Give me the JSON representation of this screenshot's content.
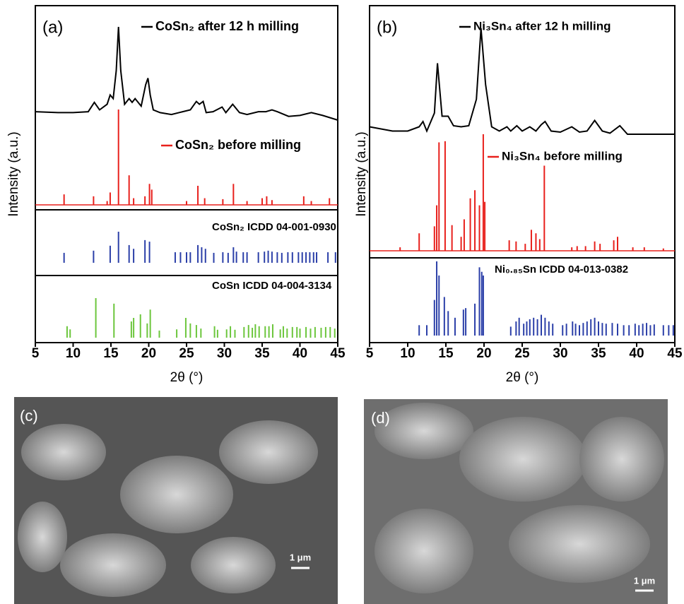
{
  "chart_data": [
    {
      "type": "xrd",
      "panel_label": "(a)",
      "ylabel": "Intensity (a.u.)",
      "xlabel": "2θ (°)",
      "xlim": [
        5,
        45
      ],
      "xticks": [
        5,
        10,
        15,
        20,
        25,
        30,
        35,
        40,
        45
      ],
      "ylim": [
        0,
        100
      ],
      "series": [
        {
          "name": "CoSn₂ after 12 h milling",
          "style": "line",
          "color": "#000000",
          "x": [
            5,
            8,
            10,
            12,
            12.8,
            13.5,
            14.5,
            14.9,
            15.3,
            15.7,
            16.0,
            16.3,
            16.8,
            17.4,
            17.8,
            18.2,
            19,
            19.6,
            19.9,
            20.2,
            20.6,
            21.5,
            23,
            24.5,
            25.5,
            26.3,
            26.7,
            27.2,
            27.6,
            28.5,
            29.7,
            30.2,
            31.1,
            32,
            33,
            34.5,
            35.5,
            36.3,
            37,
            38.5,
            40,
            41.5,
            43,
            45
          ],
          "values": [
            9,
            8,
            8,
            9,
            19,
            11,
            17,
            27,
            23,
            53,
            100,
            53,
            17,
            23,
            19,
            23,
            15,
            38,
            45,
            27,
            11,
            8,
            6,
            9,
            11,
            20,
            17,
            20,
            8,
            9,
            14,
            8,
            17,
            8,
            6,
            9,
            9,
            11,
            9,
            4,
            5,
            8,
            5,
            0
          ]
        },
        {
          "name": "CoSn₂ before milling",
          "style": "stick",
          "color": "#e8201c",
          "x": [
            8.8,
            12.7,
            14.5,
            14.9,
            16.0,
            17.4,
            18.0,
            19.5,
            20.1,
            20.4,
            25.0,
            26.5,
            27.4,
            29.8,
            31.2,
            33.0,
            35.0,
            35.6,
            36.3,
            40.5,
            41.5,
            43.9
          ],
          "values": [
            11,
            9,
            4,
            13,
            100,
            31,
            7,
            9,
            22,
            16,
            4,
            20,
            7,
            6,
            22,
            4,
            7,
            9,
            5,
            9,
            4,
            7
          ]
        },
        {
          "name": "CoSn₂ ICDD 04-001-0930",
          "style": "reference",
          "color": "#2b3fa8",
          "x": [
            8.8,
            12.7,
            14.9,
            16.0,
            17.4,
            18.0,
            19.5,
            20.1,
            23.5,
            24.2,
            25.0,
            25.5,
            26.5,
            27.0,
            27.5,
            28.6,
            29.8,
            30.5,
            31.2,
            31.6,
            32.5,
            33.0,
            34.5,
            35.3,
            35.8,
            36.3,
            37.0,
            37.6,
            38.4,
            39.0,
            39.8,
            40.3,
            40.8,
            41.3,
            41.8,
            42.2,
            43.7,
            44.7
          ],
          "values": [
            32,
            39,
            55,
            100,
            57,
            45,
            73,
            68,
            34,
            34,
            34,
            34,
            57,
            50,
            45,
            32,
            34,
            32,
            50,
            36,
            34,
            34,
            34,
            36,
            39,
            36,
            34,
            32,
            34,
            34,
            34,
            34,
            34,
            34,
            34,
            34,
            34,
            34
          ]
        },
        {
          "name": "CoSn ICDD 04-004-3134",
          "style": "reference",
          "color": "#6cc63c",
          "x": [
            9.2,
            9.6,
            13.0,
            15.4,
            17.7,
            18.0,
            18.9,
            19.8,
            20.2,
            21.4,
            23.7,
            24.9,
            25.5,
            26.3,
            26.9,
            28.7,
            29.1,
            30.3,
            30.8,
            31.4,
            32.6,
            33.2,
            33.7,
            34.1,
            34.6,
            35.4,
            35.9,
            36.4,
            37.4,
            37.8,
            38.3,
            39.0,
            39.6,
            40.0,
            40.8,
            41.4,
            42.0,
            42.8,
            43.4,
            44.0,
            44.6
          ],
          "values": [
            29,
            21,
            100,
            86,
            41,
            50,
            59,
            36,
            71,
            18,
            21,
            50,
            36,
            32,
            23,
            29,
            20,
            21,
            29,
            20,
            27,
            32,
            25,
            34,
            29,
            29,
            29,
            34,
            21,
            29,
            23,
            27,
            27,
            23,
            27,
            23,
            27,
            25,
            27,
            27,
            23
          ]
        }
      ]
    },
    {
      "type": "xrd",
      "panel_label": "(b)",
      "ylabel": "Intensity (a.u.)",
      "xlabel": "2θ (°)",
      "xlim": [
        5,
        45
      ],
      "xticks": [
        5,
        10,
        15,
        20,
        25,
        30,
        35,
        40,
        45
      ],
      "ylim": [
        0,
        100
      ],
      "series": [
        {
          "name": "Ni₃Sn₄ after 12 h milling",
          "style": "line",
          "color": "#000000",
          "x": [
            5,
            8,
            10,
            11.5,
            12,
            12.5,
            13.5,
            13.9,
            14.5,
            15.3,
            16,
            17,
            18,
            19,
            19.6,
            20.2,
            21,
            22,
            23,
            23.5,
            24.3,
            25,
            26,
            26.8,
            27.5,
            28,
            28.8,
            30,
            31.5,
            32.5,
            33.5,
            34.5,
            35.5,
            36.5,
            37.8,
            38.8,
            41,
            43,
            45
          ],
          "values": [
            7,
            3,
            3,
            7,
            12,
            3,
            20,
            67,
            17,
            17,
            8,
            7,
            8,
            33,
            100,
            47,
            7,
            3,
            7,
            3,
            8,
            3,
            7,
            3,
            9,
            12,
            3,
            2,
            7,
            2,
            3,
            13,
            3,
            1,
            8,
            0,
            0,
            0,
            0
          ]
        },
        {
          "name": "Ni₃Sn₄ before milling",
          "style": "stick",
          "color": "#e8201c",
          "x": [
            9,
            11.5,
            13.5,
            13.8,
            14.1,
            14.9,
            15.8,
            17,
            17.4,
            18.2,
            18.8,
            19.4,
            19.9,
            20.1,
            23.3,
            24.2,
            25.4,
            26.2,
            26.8,
            27.3,
            27.9,
            31.5,
            32.2,
            33.3,
            34.5,
            35.2,
            37,
            37.5,
            39.5,
            41,
            43.5
          ],
          "values": [
            3,
            15,
            21,
            39,
            93,
            94,
            22,
            12,
            27,
            45,
            52,
            39,
            100,
            42,
            9,
            8,
            6,
            18,
            15,
            10,
            73,
            3,
            4,
            4,
            8,
            6,
            9,
            12,
            3,
            3,
            2
          ]
        },
        {
          "name": "Ni₀.₈₅Sn ICDD 04-013-0382",
          "style": "reference",
          "color": "#2b3fa8",
          "x": [
            11.5,
            12.5,
            13.5,
            13.8,
            14.1,
            14.8,
            15.3,
            16.2,
            17.3,
            17.6,
            18.8,
            19.4,
            19.7,
            19.9,
            23.5,
            24.2,
            24.6,
            25.2,
            25.6,
            26,
            26.5,
            27,
            27.5,
            28,
            28.5,
            29,
            30.3,
            30.8,
            31.6,
            32,
            32.5,
            33,
            33.5,
            34,
            34.5,
            35,
            35.5,
            36,
            36.8,
            37.5,
            38.3,
            39,
            39.8,
            40.3,
            40.8,
            41.3,
            41.8,
            42.3,
            43.5,
            44.2,
            44.8
          ],
          "values": [
            14,
            14,
            48,
            100,
            81,
            52,
            33,
            24,
            35,
            37,
            43,
            92,
            86,
            81,
            12,
            19,
            24,
            16,
            19,
            22,
            24,
            22,
            28,
            24,
            19,
            16,
            14,
            16,
            19,
            16,
            14,
            17,
            19,
            22,
            24,
            19,
            17,
            16,
            17,
            16,
            14,
            14,
            16,
            14,
            16,
            17,
            14,
            15,
            14,
            14,
            14
          ]
        }
      ]
    }
  ],
  "images": [
    {
      "panel_label": "(c)",
      "scale_bar": "1 μm"
    },
    {
      "panel_label": "(d)",
      "scale_bar": "1 μm"
    }
  ]
}
